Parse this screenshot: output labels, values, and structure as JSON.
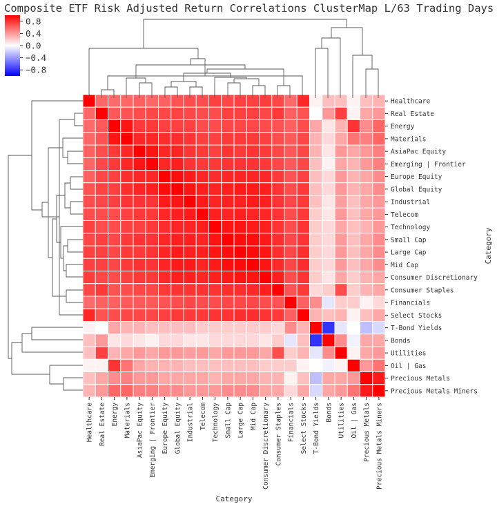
{
  "title": "Composite ETF Risk Adjusted Return Correlations ClusterMap L/63 Trading Days",
  "chart_data": {
    "type": "heatmap",
    "title": "Composite ETF Risk Adjusted Return Correlations ClusterMap L/63 Trading Days",
    "xlabel": "Category",
    "ylabel": "Category",
    "colorbar": {
      "range": [
        -1.0,
        1.0
      ],
      "ticks": [
        0.8,
        0.4,
        0.0,
        -0.4,
        -0.8
      ],
      "tick_labels": [
        "0.8",
        "0.4",
        "0.0",
        "−0.4",
        "−0.8"
      ],
      "colors": {
        "low": "#0000ff",
        "mid": "#ffffff",
        "high": "#ff0000"
      }
    },
    "categories": [
      "Healthcare",
      "Real Estate",
      "Energy",
      "Materials",
      "AsiaPac Equity",
      "Emerging | Frontier",
      "Europe Equity",
      "Global Equity",
      "Industrial",
      "Telecom",
      "Technology",
      "Small Cap",
      "Large Cap",
      "Mid Cap",
      "Consumer Discretionary",
      "Consumer Staples",
      "Financials",
      "Select Stocks",
      "T-Bond Yields",
      "Bonds",
      "Utilities",
      "Oil | Gas",
      "Precious Metals",
      "Precious Metals Miners"
    ],
    "matrix": [
      [
        1.0,
        0.6,
        0.58,
        0.6,
        0.62,
        0.6,
        0.62,
        0.68,
        0.7,
        0.7,
        0.75,
        0.72,
        0.75,
        0.75,
        0.76,
        0.72,
        0.58,
        0.85,
        0.05,
        0.25,
        0.25,
        0.05,
        0.25,
        0.3
      ],
      [
        0.6,
        1.0,
        0.65,
        0.68,
        0.7,
        0.72,
        0.72,
        0.74,
        0.72,
        0.7,
        0.7,
        0.75,
        0.75,
        0.75,
        0.72,
        0.78,
        0.62,
        0.68,
        0.0,
        0.4,
        0.75,
        0.05,
        0.35,
        0.4
      ],
      [
        0.58,
        0.65,
        1.0,
        0.92,
        0.78,
        0.78,
        0.75,
        0.75,
        0.75,
        0.7,
        0.7,
        0.72,
        0.72,
        0.72,
        0.7,
        0.68,
        0.62,
        0.7,
        0.35,
        0.1,
        0.3,
        0.8,
        0.45,
        0.6
      ],
      [
        0.6,
        0.68,
        0.92,
        1.0,
        0.85,
        0.85,
        0.82,
        0.82,
        0.8,
        0.75,
        0.75,
        0.78,
        0.78,
        0.78,
        0.75,
        0.7,
        0.65,
        0.72,
        0.3,
        0.15,
        0.35,
        0.55,
        0.5,
        0.6
      ],
      [
        0.62,
        0.7,
        0.78,
        0.85,
        1.0,
        0.92,
        0.85,
        0.86,
        0.8,
        0.78,
        0.75,
        0.8,
        0.78,
        0.8,
        0.78,
        0.72,
        0.65,
        0.72,
        0.3,
        0.1,
        0.4,
        0.35,
        0.4,
        0.5
      ],
      [
        0.6,
        0.72,
        0.78,
        0.85,
        0.92,
        1.0,
        0.85,
        0.88,
        0.8,
        0.78,
        0.78,
        0.8,
        0.8,
        0.8,
        0.78,
        0.72,
        0.65,
        0.72,
        0.25,
        0.05,
        0.35,
        0.3,
        0.4,
        0.5
      ],
      [
        0.62,
        0.72,
        0.75,
        0.82,
        0.85,
        0.85,
        1.0,
        0.95,
        0.9,
        0.85,
        0.82,
        0.85,
        0.86,
        0.86,
        0.84,
        0.78,
        0.68,
        0.75,
        0.25,
        0.15,
        0.4,
        0.3,
        0.35,
        0.45
      ],
      [
        0.68,
        0.74,
        0.75,
        0.82,
        0.86,
        0.88,
        0.95,
        1.0,
        0.92,
        0.88,
        0.86,
        0.88,
        0.9,
        0.9,
        0.88,
        0.8,
        0.7,
        0.78,
        0.25,
        0.15,
        0.4,
        0.3,
        0.35,
        0.45
      ],
      [
        0.7,
        0.72,
        0.75,
        0.8,
        0.8,
        0.8,
        0.9,
        0.92,
        1.0,
        0.9,
        0.86,
        0.88,
        0.88,
        0.9,
        0.88,
        0.8,
        0.72,
        0.78,
        0.25,
        0.1,
        0.38,
        0.25,
        0.35,
        0.4
      ],
      [
        0.7,
        0.7,
        0.7,
        0.75,
        0.78,
        0.78,
        0.85,
        0.88,
        0.9,
        1.0,
        0.88,
        0.86,
        0.88,
        0.86,
        0.85,
        0.8,
        0.7,
        0.78,
        0.2,
        0.1,
        0.4,
        0.25,
        0.35,
        0.4
      ],
      [
        0.75,
        0.7,
        0.7,
        0.75,
        0.75,
        0.78,
        0.82,
        0.86,
        0.86,
        0.88,
        1.0,
        0.92,
        0.92,
        0.9,
        0.88,
        0.8,
        0.7,
        0.8,
        0.2,
        0.15,
        0.35,
        0.25,
        0.3,
        0.4
      ],
      [
        0.72,
        0.75,
        0.72,
        0.78,
        0.8,
        0.8,
        0.85,
        0.88,
        0.88,
        0.86,
        0.92,
        1.0,
        0.95,
        0.95,
        0.9,
        0.82,
        0.72,
        0.8,
        0.2,
        0.15,
        0.4,
        0.25,
        0.35,
        0.45
      ],
      [
        0.75,
        0.75,
        0.72,
        0.78,
        0.78,
        0.8,
        0.86,
        0.9,
        0.88,
        0.88,
        0.92,
        0.95,
        1.0,
        0.96,
        0.92,
        0.82,
        0.72,
        0.82,
        0.2,
        0.15,
        0.4,
        0.25,
        0.35,
        0.45
      ],
      [
        0.75,
        0.75,
        0.72,
        0.78,
        0.8,
        0.8,
        0.86,
        0.9,
        0.9,
        0.86,
        0.9,
        0.95,
        0.96,
        1.0,
        0.92,
        0.84,
        0.72,
        0.82,
        0.2,
        0.15,
        0.4,
        0.25,
        0.35,
        0.45
      ],
      [
        0.76,
        0.72,
        0.7,
        0.75,
        0.78,
        0.78,
        0.84,
        0.88,
        0.88,
        0.85,
        0.88,
        0.9,
        0.92,
        0.92,
        1.0,
        0.88,
        0.7,
        0.8,
        0.2,
        0.1,
        0.35,
        0.2,
        0.3,
        0.35
      ],
      [
        0.72,
        0.78,
        0.68,
        0.7,
        0.72,
        0.72,
        0.78,
        0.8,
        0.8,
        0.8,
        0.8,
        0.82,
        0.82,
        0.84,
        0.88,
        1.0,
        0.68,
        0.78,
        0.15,
        0.2,
        0.7,
        0.2,
        0.3,
        0.35
      ],
      [
        0.58,
        0.62,
        0.62,
        0.65,
        0.65,
        0.65,
        0.68,
        0.7,
        0.72,
        0.7,
        0.7,
        0.72,
        0.72,
        0.72,
        0.7,
        0.68,
        1.0,
        0.62,
        0.45,
        -0.1,
        0.2,
        0.2,
        0.05,
        0.15
      ],
      [
        0.85,
        0.68,
        0.7,
        0.72,
        0.72,
        0.72,
        0.75,
        0.78,
        0.78,
        0.78,
        0.8,
        0.8,
        0.82,
        0.82,
        0.8,
        0.78,
        0.62,
        1.0,
        0.3,
        0.25,
        0.3,
        0.05,
        0.25,
        0.35
      ],
      [
        0.05,
        0.0,
        0.35,
        0.3,
        0.3,
        0.25,
        0.25,
        0.25,
        0.25,
        0.2,
        0.2,
        0.2,
        0.2,
        0.2,
        0.2,
        0.15,
        0.45,
        0.3,
        1.0,
        -0.8,
        -0.1,
        0.0,
        -0.25,
        -0.15
      ],
      [
        0.25,
        0.4,
        0.1,
        0.15,
        0.1,
        0.05,
        0.15,
        0.15,
        0.1,
        0.1,
        0.15,
        0.15,
        0.15,
        0.15,
        0.1,
        0.2,
        -0.1,
        0.25,
        -0.8,
        1.0,
        0.45,
        -0.05,
        0.35,
        0.35
      ],
      [
        0.25,
        0.75,
        0.3,
        0.35,
        0.4,
        0.35,
        0.4,
        0.4,
        0.38,
        0.4,
        0.35,
        0.4,
        0.4,
        0.4,
        0.35,
        0.7,
        0.2,
        0.3,
        -0.1,
        0.45,
        1.0,
        0.05,
        0.35,
        0.4
      ],
      [
        0.05,
        0.05,
        0.8,
        0.55,
        0.35,
        0.3,
        0.3,
        0.3,
        0.25,
        0.25,
        0.25,
        0.25,
        0.25,
        0.25,
        0.2,
        0.2,
        0.2,
        0.05,
        0.0,
        -0.05,
        0.05,
        1.0,
        0.4,
        0.55
      ],
      [
        0.25,
        0.35,
        0.45,
        0.5,
        0.4,
        0.4,
        0.35,
        0.35,
        0.35,
        0.35,
        0.3,
        0.35,
        0.35,
        0.35,
        0.3,
        0.3,
        0.05,
        0.25,
        -0.25,
        0.35,
        0.35,
        0.4,
        1.0,
        0.9
      ],
      [
        0.3,
        0.4,
        0.6,
        0.6,
        0.5,
        0.5,
        0.45,
        0.45,
        0.4,
        0.4,
        0.4,
        0.45,
        0.45,
        0.45,
        0.35,
        0.35,
        0.15,
        0.35,
        -0.15,
        0.35,
        0.4,
        0.55,
        0.9,
        1.0
      ]
    ]
  }
}
